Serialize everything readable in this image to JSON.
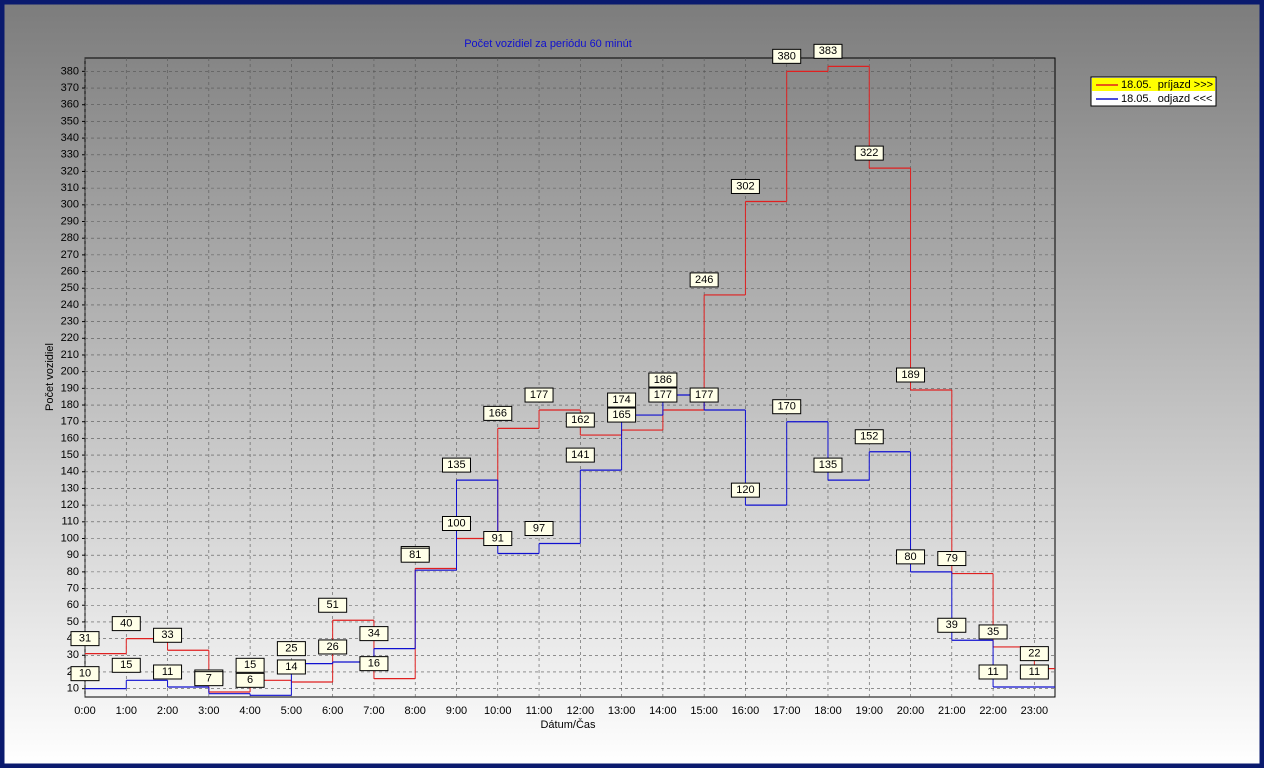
{
  "chart_data": {
    "type": "step",
    "title": "Počet vozidiel za periódu 60 minút",
    "x_label": "Dátum/Čas",
    "y_label": "Počet vozidiel",
    "categories": [
      "0:00",
      "1:00",
      "2:00",
      "3:00",
      "4:00",
      "5:00",
      "6:00",
      "7:00",
      "8:00",
      "9:00",
      "10:00",
      "11:00",
      "12:00",
      "13:00",
      "14:00",
      "15:00",
      "16:00",
      "17:00",
      "18:00",
      "19:00",
      "20:00",
      "21:00",
      "22:00",
      "23:00"
    ],
    "series": [
      {
        "name": "18.05.  príjazd >>>",
        "color": "#e02020",
        "values": [
          31,
          40,
          33,
          8,
          15,
          14,
          51,
          16,
          82,
          100,
          166,
          177,
          162,
          165,
          177,
          246,
          302,
          380,
          383,
          322,
          189,
          79,
          35,
          22
        ]
      },
      {
        "name": "18.05.  odjazd <<<",
        "color": "#1010d0",
        "values": [
          10,
          15,
          11,
          7,
          6,
          25,
          26,
          34,
          81,
          135,
          91,
          97,
          141,
          174,
          186,
          177,
          120,
          170,
          135,
          152,
          80,
          39,
          11,
          11
        ]
      }
    ],
    "xlim": [
      0,
      23.5
    ],
    "ylim": [
      5,
      388
    ],
    "yticks": [
      10,
      20,
      30,
      40,
      50,
      60,
      70,
      80,
      90,
      100,
      110,
      120,
      130,
      140,
      150,
      160,
      170,
      180,
      190,
      200,
      210,
      220,
      230,
      240,
      250,
      260,
      270,
      280,
      290,
      300,
      310,
      320,
      330,
      340,
      350,
      360,
      370,
      380
    ],
    "grid": true,
    "legend": "top-right"
  }
}
